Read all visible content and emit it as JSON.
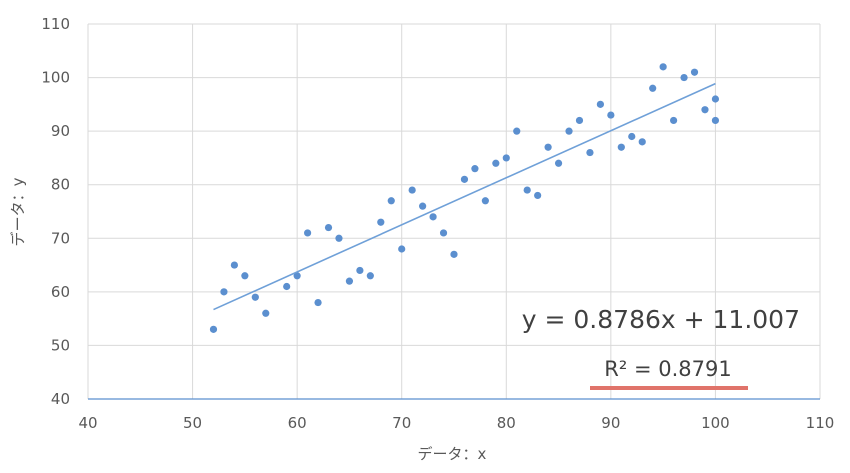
{
  "chart_data": {
    "type": "scatter",
    "title": "",
    "xlabel": "データ：x",
    "ylabel": "データ：y",
    "xlim": [
      40,
      110
    ],
    "ylim": [
      40,
      110
    ],
    "xticks": [
      40,
      50,
      60,
      70,
      80,
      90,
      100,
      110
    ],
    "yticks": [
      40,
      50,
      60,
      70,
      80,
      90,
      100,
      110
    ],
    "grid": true,
    "legend": "none",
    "series": [
      {
        "color": "#5b8fcf",
        "points": [
          [
            52,
            53
          ],
          [
            53,
            60
          ],
          [
            54,
            65
          ],
          [
            55,
            63
          ],
          [
            56,
            59
          ],
          [
            57,
            56
          ],
          [
            59,
            61
          ],
          [
            60,
            63
          ],
          [
            61,
            71
          ],
          [
            62,
            58
          ],
          [
            63,
            72
          ],
          [
            64,
            70
          ],
          [
            65,
            62
          ],
          [
            66,
            64
          ],
          [
            67,
            63
          ],
          [
            68,
            73
          ],
          [
            69,
            77
          ],
          [
            70,
            68
          ],
          [
            71,
            79
          ],
          [
            72,
            76
          ],
          [
            73,
            74
          ],
          [
            74,
            71
          ],
          [
            75,
            67
          ],
          [
            76,
            81
          ],
          [
            77,
            83
          ],
          [
            78,
            77
          ],
          [
            79,
            84
          ],
          [
            80,
            85
          ],
          [
            81,
            90
          ],
          [
            82,
            79
          ],
          [
            83,
            78
          ],
          [
            84,
            87
          ],
          [
            85,
            84
          ],
          [
            86,
            90
          ],
          [
            87,
            92
          ],
          [
            88,
            86
          ],
          [
            89,
            95
          ],
          [
            90,
            93
          ],
          [
            91,
            87
          ],
          [
            92,
            89
          ],
          [
            93,
            88
          ],
          [
            94,
            98
          ],
          [
            95,
            102
          ],
          [
            96,
            92
          ],
          [
            97,
            100
          ],
          [
            98,
            101
          ],
          [
            99,
            94
          ],
          [
            100,
            96
          ],
          [
            100,
            92
          ]
        ]
      }
    ],
    "trendline": {
      "type": "linear",
      "slope": 0.8786,
      "intercept": 11.007,
      "x_range": [
        52,
        100
      ],
      "color": "#6fa0d8",
      "equation_label": "y = 0.8786x + 11.007",
      "r2_label": "R² = 0.8791",
      "r2_underline_color": "#e0736a"
    }
  }
}
